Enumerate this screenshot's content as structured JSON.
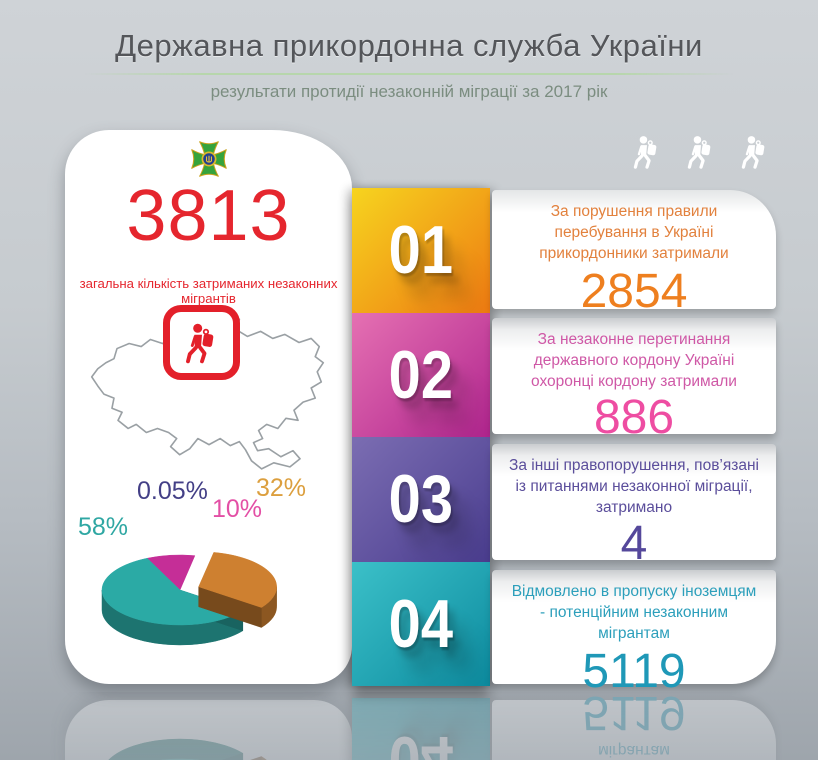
{
  "header": {
    "title": "Державна прикордонна служба України",
    "title_color": "#54565a",
    "subtitle": "результати протидії незаконній міграції за 2017 рік",
    "subtitle_color": "#7b8d80"
  },
  "summary": {
    "total_value": "3813",
    "total_caption": "загальна кількість затриманих незаконних мігрантів",
    "accent_color": "#e5262e"
  },
  "items": [
    {
      "number": "01",
      "text": "За порушення правили перебування в Україні прикордонники затримали",
      "value": "2854",
      "text_color": "#e2813d",
      "value_color": "#ee7f1f",
      "gradient": [
        "#f6d41f",
        "#ee7a12"
      ]
    },
    {
      "number": "02",
      "text": "За незаконне перетинання державного кордону Україні охоронці кордону затримали",
      "value": "886",
      "text_color": "#cf58a6",
      "value_color": "#ee4da2",
      "gradient": [
        "#e570b2",
        "#b0258e"
      ]
    },
    {
      "number": "03",
      "text": "За інші правопорушення, пов’язані із питаннями незаконної міграції, затримано",
      "value": "4",
      "text_color": "#5b4e9b",
      "value_color": "#55489b",
      "gradient": [
        "#7b6db2",
        "#4a3d8f"
      ]
    },
    {
      "number": "04",
      "text": "Відмовлено в пропуску іноземцям - потенційним незаконним мігрантам",
      "value": "5119",
      "text_color": "#2c9fbb",
      "value_color": "#1f98b7",
      "gradient": [
        "#3bc0c8",
        "#0d8b9f"
      ]
    }
  ],
  "chart_data": {
    "type": "pie",
    "start_angle_deg": 115,
    "clockwise": true,
    "depth_3d": true,
    "slices": [
      {
        "label": "10%",
        "value": 10,
        "color": "#c52e97",
        "label_color": "#e34fa5"
      },
      {
        "label": "0.05%",
        "value": 0.05,
        "color": "#443f8a",
        "label_color": "#433f86"
      },
      {
        "label": "32%",
        "value": 32,
        "color": "#ce8030",
        "label_color": "#dc9f3e",
        "exploded": true
      },
      {
        "label": "58%",
        "value": 58,
        "color": "#2baaa5",
        "label_color": "#2fa7a3"
      }
    ]
  },
  "icons": {
    "emblem": "border-guard-service-emblem",
    "migrant": "walking-migrant-with-backpack",
    "migrant_count_top_right": 3
  }
}
